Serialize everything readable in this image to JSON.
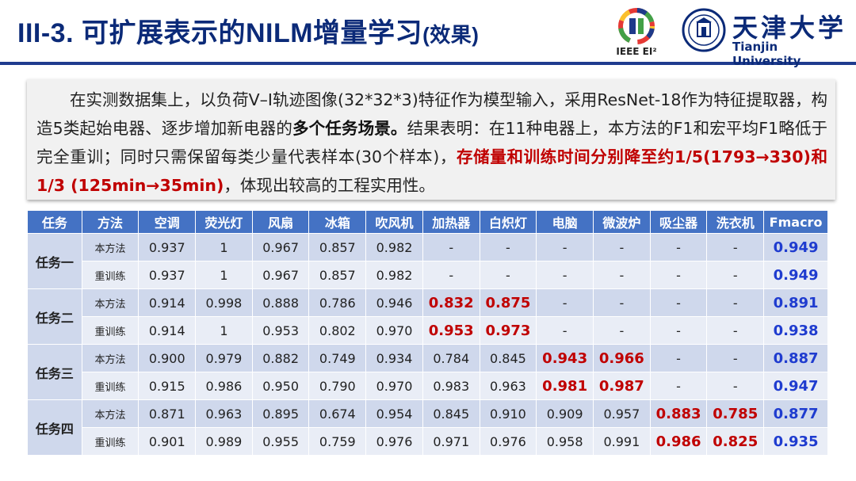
{
  "title": {
    "main": "III-3. 可扩展表示的NILM增量学习",
    "sub": "(效果)"
  },
  "logos": {
    "ieee_caption": "IEEE EI²",
    "tju_cn": "天津大学",
    "tju_en": "Tianjin University"
  },
  "colors": {
    "title": "#0b2a78",
    "header_bg": "#4472c4",
    "highlight_red": "#c00000",
    "fmacro_blue": "#1f3ccf"
  },
  "paragraph": {
    "p1": "在实测数据集上，以负荷V–I轨迹图像(32*32*3)特征作为模型输入，采用ResNet-18作为特征提取器，构造5类起始电器、逐步增加新电器的",
    "p1_bold": "多个任务场景。",
    "p2": "结果表明：在11种电器上，本方法的F1和宏平均F1略低于完全重训；同时只需保留每类少量代表样本(30个样本)，",
    "p2_red": "存储量和训练时间分别降至约1/5(1793→330)和1/3 (125min→35min)",
    "p3": "，体现出较高的工程实用性。"
  },
  "table": {
    "headers": [
      "任务",
      "方法",
      "空调",
      "荧光灯",
      "风扇",
      "冰箱",
      "吹风机",
      "加热器",
      "白炽灯",
      "电脑",
      "微波炉",
      "吸尘器",
      "洗衣机",
      "Fmacro"
    ],
    "rows": [
      [
        "任务一",
        "本方法",
        "0.937",
        "1",
        "0.967",
        "0.857",
        "0.982",
        "-",
        "-",
        "-",
        "-",
        "-",
        "-",
        "0.949"
      ],
      [
        "",
        "重训练",
        "0.937",
        "1",
        "0.967",
        "0.857",
        "0.982",
        "-",
        "-",
        "-",
        "-",
        "-",
        "-",
        "0.949"
      ],
      [
        "任务二",
        "本方法",
        "0.914",
        "0.998",
        "0.888",
        "0.786",
        "0.946",
        "0.832",
        "0.875",
        "-",
        "-",
        "-",
        "-",
        "0.891"
      ],
      [
        "",
        "重训练",
        "0.914",
        "1",
        "0.953",
        "0.802",
        "0.970",
        "0.953",
        "0.973",
        "-",
        "-",
        "-",
        "-",
        "0.938"
      ],
      [
        "任务三",
        "本方法",
        "0.900",
        "0.979",
        "0.882",
        "0.749",
        "0.934",
        "0.784",
        "0.845",
        "0.943",
        "0.966",
        "-",
        "-",
        "0.887"
      ],
      [
        "",
        "重训练",
        "0.915",
        "0.986",
        "0.950",
        "0.790",
        "0.970",
        "0.983",
        "0.963",
        "0.981",
        "0.987",
        "-",
        "-",
        "0.947"
      ],
      [
        "任务四",
        "本方法",
        "0.871",
        "0.963",
        "0.895",
        "0.674",
        "0.954",
        "0.845",
        "0.910",
        "0.909",
        "0.957",
        "0.883",
        "0.785",
        "0.877"
      ],
      [
        "",
        "重训练",
        "0.901",
        "0.989",
        "0.955",
        "0.759",
        "0.976",
        "0.971",
        "0.976",
        "0.958",
        "0.991",
        "0.986",
        "0.825",
        "0.935"
      ]
    ]
  }
}
